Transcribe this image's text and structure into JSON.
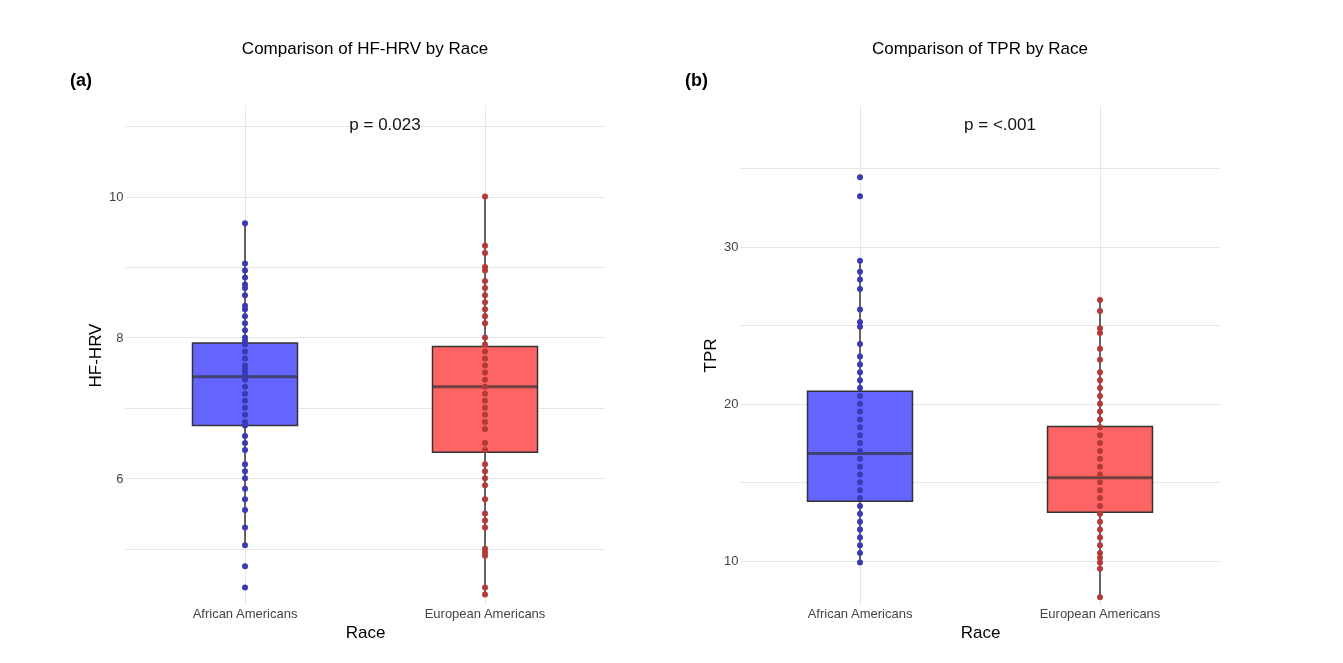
{
  "chart_data": [
    {
      "type": "box",
      "title": "Comparison of HF-HRV by Race",
      "xlabel": "Race",
      "ylabel": "HF-HRV",
      "categories": [
        "African Americans",
        "European Americans"
      ],
      "boxes": [
        {
          "low": 5.02,
          "q1": 6.75,
          "median": 7.44,
          "q3": 7.92,
          "high": 9.62
        },
        {
          "low": 4.34,
          "q1": 6.37,
          "median": 7.3,
          "q3": 7.87,
          "high": 10.0
        }
      ],
      "colors": [
        "#6464ff",
        "#ff6464"
      ],
      "series": [
        {
          "type": "scatter",
          "color": "#3a3ab4",
          "x": [
            "African Americans",
            "African Americans",
            "African Americans",
            "African Americans",
            "African Americans",
            "African Americans",
            "African Americans",
            "African Americans",
            "African Americans",
            "African Americans",
            "African Americans",
            "African Americans",
            "African Americans",
            "African Americans",
            "African Americans",
            "African Americans",
            "African Americans",
            "African Americans",
            "African Americans",
            "African Americans",
            "African Americans",
            "African Americans",
            "African Americans",
            "African Americans",
            "African Americans",
            "African Americans",
            "African Americans",
            "African Americans",
            "African Americans",
            "African Americans",
            "African Americans",
            "African Americans",
            "African Americans",
            "African Americans",
            "African Americans",
            "African Americans",
            "African Americans",
            "African Americans",
            "African Americans",
            "African Americans",
            "African Americans",
            "African Americans"
          ],
          "values": [
            9.62,
            9.05,
            8.95,
            8.85,
            8.75,
            8.7,
            8.6,
            8.45,
            8.4,
            8.3,
            8.2,
            8.1,
            8.0,
            7.95,
            7.9,
            7.8,
            7.7,
            7.6,
            7.55,
            7.5,
            7.45,
            7.4,
            7.3,
            7.2,
            7.1,
            7.0,
            6.9,
            6.8,
            6.75,
            6.6,
            6.5,
            6.4,
            6.2,
            6.1,
            6.0,
            5.85,
            5.7,
            5.55,
            5.3,
            5.05,
            4.75,
            4.45
          ]
        },
        {
          "type": "scatter",
          "color": "#b43a3a",
          "x": [
            "European Americans",
            "European Americans",
            "European Americans",
            "European Americans",
            "European Americans",
            "European Americans",
            "European Americans",
            "European Americans",
            "European Americans",
            "European Americans",
            "European Americans",
            "European Americans",
            "European Americans",
            "European Americans",
            "European Americans",
            "European Americans",
            "European Americans",
            "European Americans",
            "European Americans",
            "European Americans",
            "European Americans",
            "European Americans",
            "European Americans",
            "European Americans",
            "European Americans",
            "European Americans",
            "European Americans",
            "European Americans",
            "European Americans",
            "European Americans",
            "European Americans",
            "European Americans",
            "European Americans",
            "European Americans",
            "European Americans",
            "European Americans",
            "European Americans",
            "European Americans",
            "European Americans",
            "European Americans",
            "European Americans"
          ],
          "values": [
            10.0,
            9.3,
            9.2,
            9.0,
            8.95,
            8.8,
            8.7,
            8.6,
            8.5,
            8.4,
            8.3,
            8.2,
            8.0,
            7.9,
            7.8,
            7.7,
            7.6,
            7.5,
            7.4,
            7.3,
            7.2,
            7.1,
            7.0,
            6.9,
            6.8,
            6.7,
            6.5,
            6.4,
            6.2,
            6.1,
            6.0,
            5.9,
            5.7,
            5.5,
            5.4,
            5.3,
            5.0,
            4.95,
            4.9,
            4.45,
            4.35
          ]
        }
      ],
      "ylim": [
        4.2,
        11.3
      ],
      "yticks": [
        {
          "value": 5,
          "label": null
        },
        6,
        {
          "value": 7,
          "label": null
        },
        8,
        {
          "value": 9,
          "label": null
        },
        10,
        {
          "value": 11,
          "label": null
        }
      ],
      "grid": true,
      "annotations": [
        "(a)",
        "p = 0.023"
      ]
    },
    {
      "type": "box",
      "title": "Comparison of TPR by Race",
      "xlabel": "Race",
      "ylabel": "TPR",
      "categories": [
        "African Americans",
        "European Americans"
      ],
      "boxes": [
        {
          "low": 9.94,
          "q1": 13.8,
          "median": 16.84,
          "q3": 20.8,
          "high": 29.1
        },
        {
          "low": 7.76,
          "q1": 13.1,
          "median": 15.29,
          "q3": 18.56,
          "high": 26.55
        }
      ],
      "colors": [
        "#6464ff",
        "#ff6464"
      ],
      "series": [
        {
          "type": "scatter",
          "color": "#3a3ab4",
          "x": [
            "African Americans",
            "African Americans",
            "African Americans",
            "African Americans",
            "African Americans",
            "African Americans",
            "African Americans",
            "African Americans",
            "African Americans",
            "African Americans",
            "African Americans",
            "African Americans",
            "African Americans",
            "African Americans",
            "African Americans",
            "African Americans",
            "African Americans",
            "African Americans",
            "African Americans",
            "African Americans",
            "African Americans",
            "African Americans",
            "African Americans",
            "African Americans",
            "African Americans",
            "African Americans",
            "African Americans",
            "African Americans",
            "African Americans",
            "African Americans",
            "African Americans",
            "African Americans",
            "African Americans",
            "African Americans",
            "African Americans",
            "African Americans",
            "African Americans"
          ],
          "values": [
            34.4,
            33.2,
            29.1,
            28.4,
            27.9,
            27.3,
            26.0,
            25.2,
            24.9,
            23.8,
            23.0,
            22.5,
            22.0,
            21.5,
            21.0,
            20.5,
            20.0,
            19.5,
            19.0,
            18.5,
            18.0,
            17.5,
            17.0,
            16.5,
            16.0,
            15.5,
            15.0,
            14.5,
            14.0,
            13.5,
            13.0,
            12.5,
            12.0,
            11.5,
            11.0,
            10.5,
            9.9
          ]
        },
        {
          "type": "scatter",
          "color": "#b43a3a",
          "x": [
            "European Americans",
            "European Americans",
            "European Americans",
            "European Americans",
            "European Americans",
            "European Americans",
            "European Americans",
            "European Americans",
            "European Americans",
            "European Americans",
            "European Americans",
            "European Americans",
            "European Americans",
            "European Americans",
            "European Americans",
            "European Americans",
            "European Americans",
            "European Americans",
            "European Americans",
            "European Americans",
            "European Americans",
            "European Americans",
            "European Americans",
            "European Americans",
            "European Americans",
            "European Americans",
            "European Americans",
            "European Americans",
            "European Americans",
            "European Americans",
            "European Americans",
            "European Americans",
            "European Americans",
            "European Americans"
          ],
          "values": [
            26.6,
            25.9,
            24.8,
            24.5,
            23.5,
            22.8,
            22.0,
            21.5,
            21.0,
            20.5,
            20.0,
            19.5,
            19.0,
            18.5,
            18.0,
            17.5,
            17.0,
            16.5,
            16.0,
            15.5,
            15.0,
            14.5,
            14.0,
            13.5,
            13.0,
            12.5,
            12.0,
            11.5,
            11.0,
            10.5,
            10.2,
            9.9,
            9.5,
            7.7
          ]
        }
      ],
      "ylim": [
        7.2,
        39
      ],
      "yticks": [
        10,
        {
          "value": 15,
          "label": null
        },
        20,
        {
          "value": 25,
          "label": null
        },
        30,
        {
          "value": 35,
          "label": null
        }
      ],
      "grid": true,
      "annotations": [
        "(b)",
        "p = <.001"
      ]
    }
  ]
}
